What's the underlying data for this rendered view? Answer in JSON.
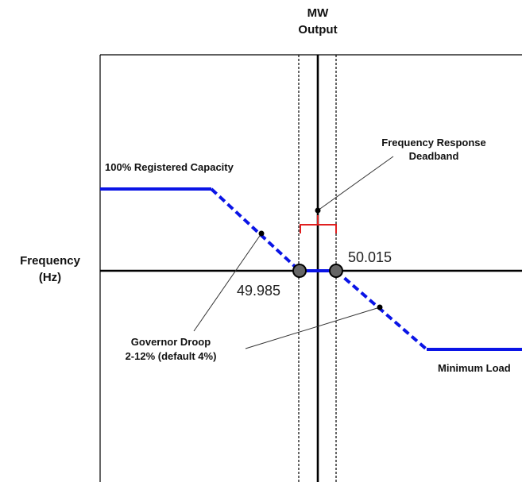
{
  "axes": {
    "y_label_line1": "MW",
    "y_label_line2": "Output",
    "x_label_line1": "Frequency",
    "x_label_line2": "(Hz)"
  },
  "labels": {
    "registered_capacity": "100% Registered Capacity",
    "deadband_line1": "Frequency Response",
    "deadband_line2": "Deadband",
    "droop_line1": "Governor Droop",
    "droop_line2": "2-12% (default 4%)",
    "minimum_load": "Minimum Load"
  },
  "values": {
    "deadband_low": "49.985",
    "deadband_high": "50.015"
  },
  "colors": {
    "characteristic_line": "#0a14e6",
    "deadband_bracket": "#e02020",
    "axis": "#000000",
    "marker_fill": "#666666"
  }
}
